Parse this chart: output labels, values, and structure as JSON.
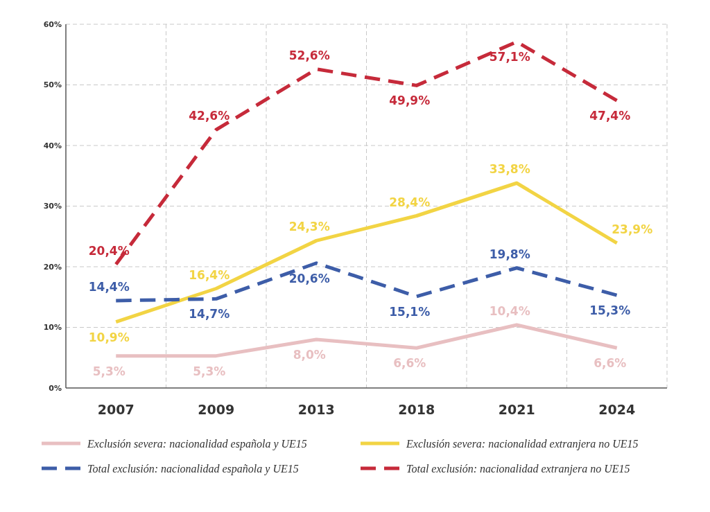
{
  "chart_data": {
    "type": "line",
    "categories": [
      "2007",
      "2009",
      "2013",
      "2018",
      "2021",
      "2024"
    ],
    "ylim": [
      0,
      60
    ],
    "yticks": [
      {
        "value": 0,
        "label": "0%"
      },
      {
        "value": 10,
        "label": "10%"
      },
      {
        "value": 20,
        "label": "20%"
      },
      {
        "value": 30,
        "label": "30%"
      },
      {
        "value": 40,
        "label": "40%"
      },
      {
        "value": 50,
        "label": "50%"
      },
      {
        "value": 60,
        "label": "60%"
      }
    ],
    "grid": true,
    "legend": "bottom",
    "marker": "none",
    "series": [
      {
        "name": "Exclusión severa: nacionalidad española y UE15",
        "color": "#e8bfc1",
        "line_style": "solid",
        "values": [
          5.3,
          5.3,
          8.0,
          6.6,
          10.4,
          6.6
        ],
        "value_labels": [
          "5,3%",
          "5,3%",
          "8,0%",
          "6,6%",
          "10,4%",
          "6,6%"
        ]
      },
      {
        "name": "Exclusión severa: nacionalidad extranjera no UE15",
        "color": "#f2d444",
        "line_style": "solid",
        "values": [
          10.9,
          16.4,
          24.3,
          28.4,
          33.8,
          23.9
        ],
        "value_labels": [
          "10,9%",
          "16,4%",
          "24,3%",
          "28,4%",
          "33,8%",
          "23,9%"
        ]
      },
      {
        "name": "Total exclusión: nacionalidad española y UE15",
        "color": "#3d5da8",
        "line_style": "dashed",
        "values": [
          14.4,
          14.7,
          20.6,
          15.1,
          19.8,
          15.3
        ],
        "value_labels": [
          "14,4%",
          "14,7%",
          "20,6%",
          "15,1%",
          "19,8%",
          "15,3%"
        ]
      },
      {
        "name": "Total exclusión: nacionalidad extranjera no UE15",
        "color": "#c62a3a",
        "line_style": "dashed",
        "values": [
          20.4,
          42.6,
          52.6,
          49.9,
          57.1,
          47.4
        ],
        "value_labels": [
          "20,4%",
          "42,6%",
          "52,6%",
          "49,9%",
          "57,1%",
          "47,4%"
        ]
      }
    ]
  }
}
